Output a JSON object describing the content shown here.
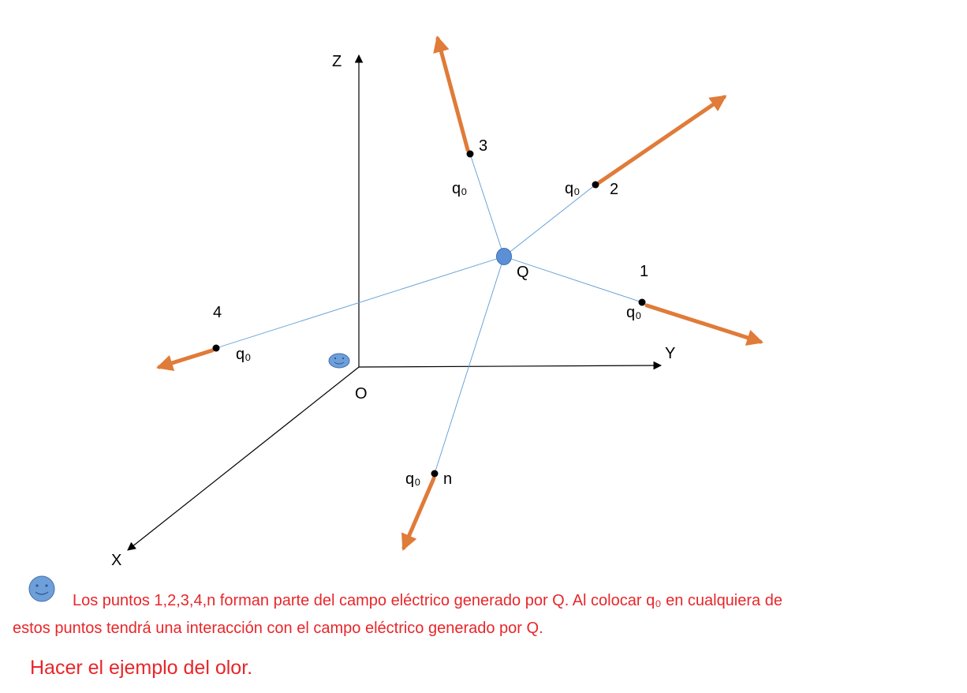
{
  "axes": {
    "z_label": "Z",
    "y_label": "Y",
    "x_label": "X",
    "origin_label": "O"
  },
  "central_charge": {
    "label": "Q"
  },
  "points": [
    {
      "number": "1",
      "charge_label": "q₀"
    },
    {
      "number": "2",
      "charge_label": "q₀"
    },
    {
      "number": "3",
      "charge_label": "q₀"
    },
    {
      "number": "4",
      "charge_label": "q₀"
    },
    {
      "number": "n",
      "charge_label": "q₀"
    }
  ],
  "caption": {
    "line1": "Los puntos 1,2,3,4,n forman parte del campo eléctrico generado por Q. Al colocar q₀ en cualquiera de",
    "line2": "estos puntos tendrá una interacción con el campo eléctrico generado por Q."
  },
  "note": "Hacer el ejemplo del olor.",
  "icons": [
    "smiley-icon",
    "smiley-icon"
  ],
  "colors": {
    "field_vector": "#e07b39",
    "field_line": "#5b9bd5",
    "charge_fill": "#5b8fd6",
    "caption_text": "#e8262a",
    "axis": "#000000"
  }
}
